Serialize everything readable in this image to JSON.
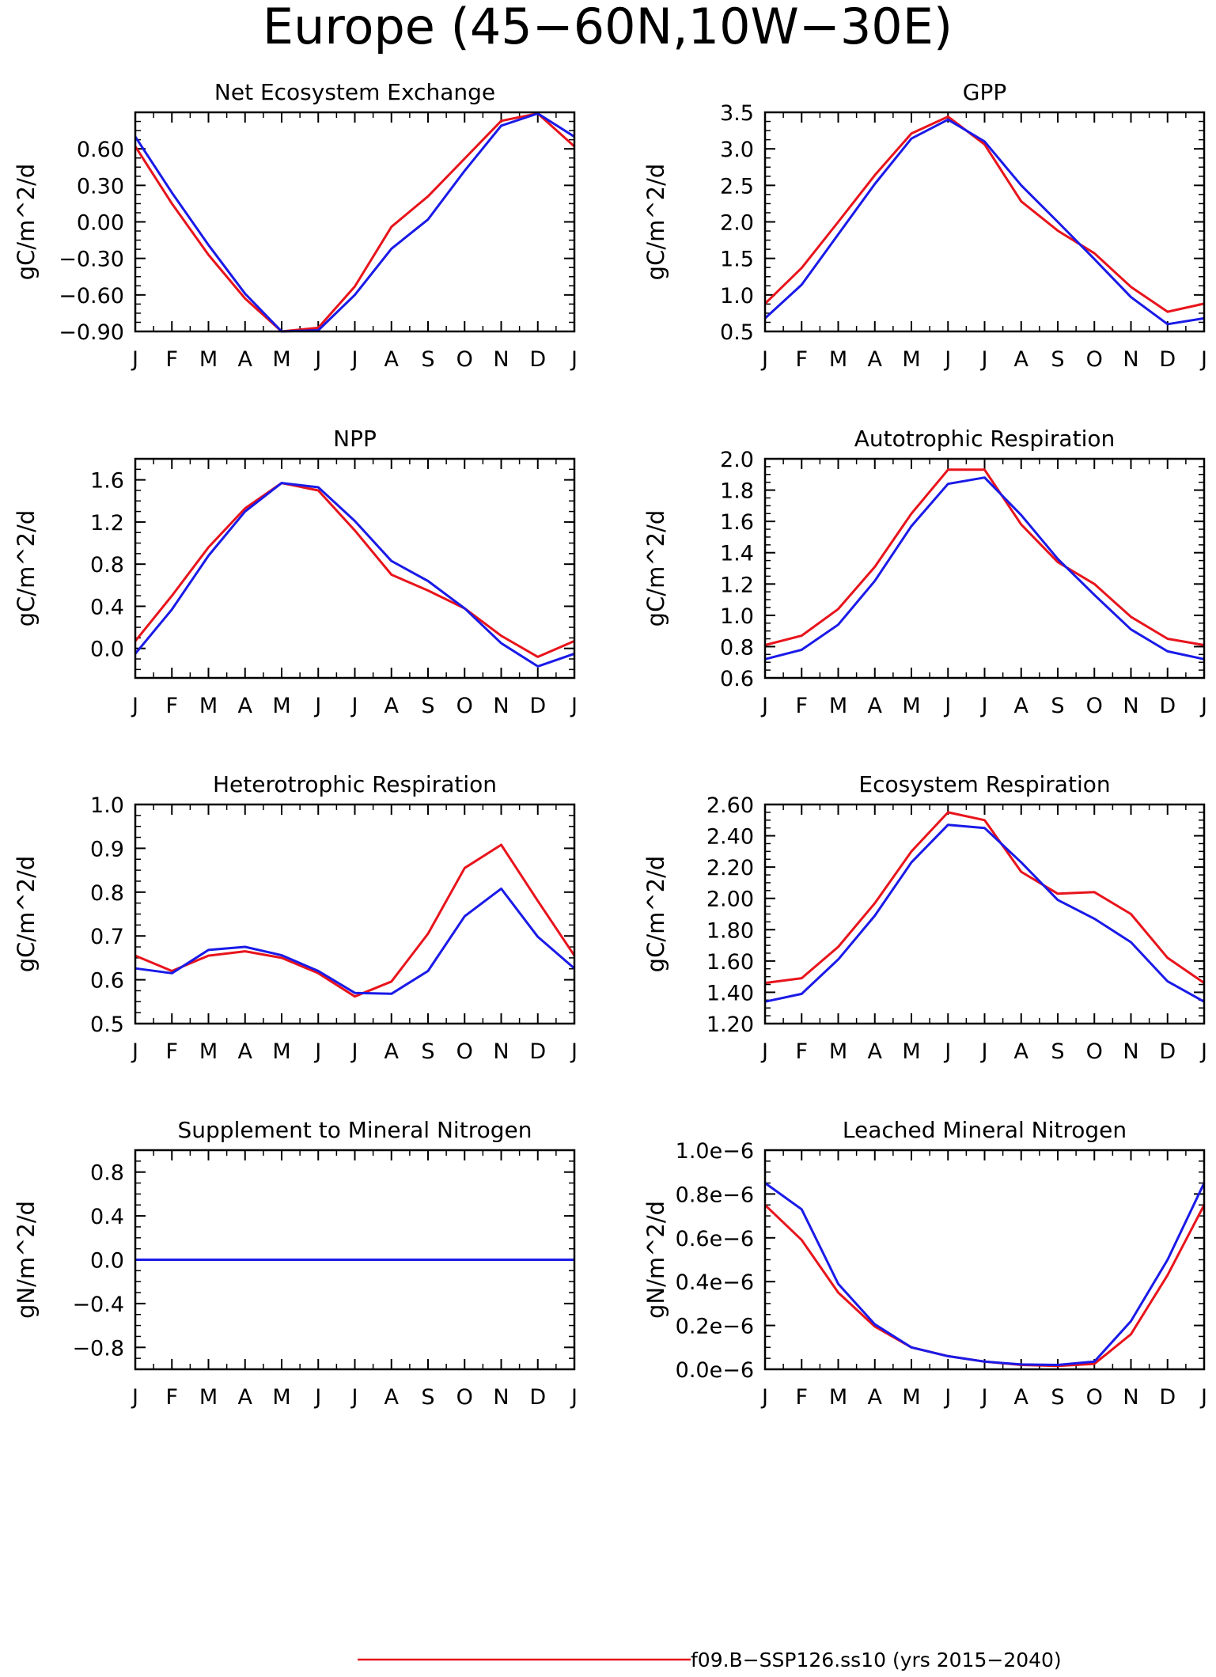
{
  "figure_title": "Europe (45−60N,10W−30E)",
  "colors": {
    "series_1": "#e8141c",
    "series_2": "#1a1ae8",
    "axes": "#000000"
  },
  "legend": [
    {
      "label": "f09.B−SSP126.ss10 (yrs 2015−2040)",
      "color": "#e8141c"
    }
  ],
  "chart_data": [
    {
      "type": "line",
      "title": "Net Ecosystem Exchange",
      "ylabel": "gC/m^2/d",
      "categories": [
        "J",
        "F",
        "M",
        "A",
        "M",
        "J",
        "J",
        "A",
        "S",
        "O",
        "N",
        "D",
        "J"
      ],
      "ylim": [
        -0.9,
        0.9
      ],
      "yticks": [
        -0.9,
        -0.6,
        -0.3,
        0.0,
        0.3,
        0.6
      ],
      "yticklabels": [
        "−0.90",
        "−0.60",
        "−0.30",
        "0.00",
        "0.30",
        "0.60"
      ],
      "series": [
        {
          "values": [
            0.62,
            0.15,
            -0.27,
            -0.63,
            -0.9,
            -0.87,
            -0.53,
            -0.04,
            0.21,
            0.52,
            0.83,
            0.89,
            0.62
          ]
        },
        {
          "values": [
            0.7,
            0.24,
            -0.19,
            -0.59,
            -0.9,
            -0.89,
            -0.6,
            -0.22,
            0.02,
            0.42,
            0.79,
            0.89,
            0.7
          ]
        }
      ]
    },
    {
      "type": "line",
      "title": "GPP",
      "ylabel": "gC/m^2/d",
      "categories": [
        "J",
        "F",
        "M",
        "A",
        "M",
        "J",
        "J",
        "A",
        "S",
        "O",
        "N",
        "D",
        "J"
      ],
      "ylim": [
        0.5,
        3.5
      ],
      "yticks": [
        0.5,
        1.0,
        1.5,
        2.0,
        2.5,
        3.0,
        3.5
      ],
      "yticklabels": [
        "0.5",
        "1.0",
        "1.5",
        "2.0",
        "2.5",
        "3.0",
        "3.5"
      ],
      "series": [
        {
          "values": [
            0.88,
            1.37,
            2.0,
            2.64,
            3.21,
            3.44,
            3.06,
            2.28,
            1.88,
            1.57,
            1.11,
            0.77,
            0.88
          ]
        },
        {
          "values": [
            0.68,
            1.14,
            1.83,
            2.52,
            3.14,
            3.4,
            3.1,
            2.5,
            2.0,
            1.49,
            0.97,
            0.6,
            0.68
          ]
        }
      ]
    },
    {
      "type": "line",
      "title": "NPP",
      "ylabel": "gC/m^2/d",
      "categories": [
        "J",
        "F",
        "M",
        "A",
        "M",
        "J",
        "J",
        "A",
        "S",
        "O",
        "N",
        "D",
        "J"
      ],
      "ylim": [
        -0.28,
        1.8
      ],
      "yticks": [
        0.0,
        0.4,
        0.8,
        1.2,
        1.6
      ],
      "yticklabels": [
        "0.0",
        "0.4",
        "0.8",
        "1.2",
        "1.6"
      ],
      "series": [
        {
          "values": [
            0.07,
            0.5,
            0.96,
            1.33,
            1.57,
            1.5,
            1.12,
            0.7,
            0.55,
            0.38,
            0.12,
            -0.08,
            0.07
          ]
        },
        {
          "values": [
            -0.05,
            0.37,
            0.88,
            1.3,
            1.57,
            1.53,
            1.21,
            0.83,
            0.64,
            0.38,
            0.05,
            -0.17,
            -0.05
          ]
        }
      ]
    },
    {
      "type": "line",
      "title": "Autotrophic Respiration",
      "ylabel": "gC/m^2/d",
      "categories": [
        "J",
        "F",
        "M",
        "A",
        "M",
        "J",
        "J",
        "A",
        "S",
        "O",
        "N",
        "D",
        "J"
      ],
      "ylim": [
        0.6,
        2.0
      ],
      "yticks": [
        0.6,
        0.8,
        1.0,
        1.2,
        1.4,
        1.6,
        1.8,
        2.0
      ],
      "yticklabels": [
        "0.6",
        "0.8",
        "1.0",
        "1.2",
        "1.4",
        "1.6",
        "1.8",
        "2.0"
      ],
      "series": [
        {
          "values": [
            0.81,
            0.87,
            1.04,
            1.31,
            1.65,
            1.93,
            1.93,
            1.58,
            1.34,
            1.2,
            0.99,
            0.85,
            0.81
          ]
        },
        {
          "values": [
            0.72,
            0.78,
            0.94,
            1.22,
            1.57,
            1.84,
            1.88,
            1.64,
            1.36,
            1.13,
            0.91,
            0.77,
            0.72
          ]
        }
      ]
    },
    {
      "type": "line",
      "title": "Heterotrophic Respiration",
      "ylabel": "gC/m^2/d",
      "categories": [
        "J",
        "F",
        "M",
        "A",
        "M",
        "J",
        "J",
        "A",
        "S",
        "O",
        "N",
        "D",
        "J"
      ],
      "ylim": [
        0.5,
        1.0
      ],
      "yticks": [
        0.5,
        0.6,
        0.7,
        0.8,
        0.9,
        1.0
      ],
      "yticklabels": [
        "0.5",
        "0.6",
        "0.7",
        "0.8",
        "0.9",
        "1.0"
      ],
      "series": [
        {
          "values": [
            0.655,
            0.62,
            0.655,
            0.665,
            0.65,
            0.615,
            0.562,
            0.596,
            0.705,
            0.855,
            0.908,
            0.78,
            0.655
          ]
        },
        {
          "values": [
            0.626,
            0.615,
            0.668,
            0.675,
            0.656,
            0.62,
            0.57,
            0.568,
            0.62,
            0.745,
            0.808,
            0.698,
            0.626
          ]
        }
      ]
    },
    {
      "type": "line",
      "title": "Ecosystem Respiration",
      "ylabel": "gC/m^2/d",
      "categories": [
        "J",
        "F",
        "M",
        "A",
        "M",
        "J",
        "J",
        "A",
        "S",
        "O",
        "N",
        "D",
        "J"
      ],
      "ylim": [
        1.2,
        2.6
      ],
      "yticks": [
        1.2,
        1.4,
        1.6,
        1.8,
        2.0,
        2.2,
        2.4,
        2.6
      ],
      "yticklabels": [
        "1.20",
        "1.40",
        "1.60",
        "1.80",
        "2.00",
        "2.20",
        "2.40",
        "2.60"
      ],
      "series": [
        {
          "values": [
            1.46,
            1.49,
            1.69,
            1.97,
            2.3,
            2.55,
            2.5,
            2.17,
            2.03,
            2.04,
            1.9,
            1.62,
            1.46
          ]
        },
        {
          "values": [
            1.34,
            1.39,
            1.61,
            1.89,
            2.23,
            2.47,
            2.45,
            2.23,
            1.99,
            1.87,
            1.72,
            1.47,
            1.34
          ]
        }
      ]
    },
    {
      "type": "line",
      "title": "Supplement to Mineral Nitrogen",
      "ylabel": "gN/m^2/d",
      "categories": [
        "J",
        "F",
        "M",
        "A",
        "M",
        "J",
        "J",
        "A",
        "S",
        "O",
        "N",
        "D",
        "J"
      ],
      "ylim": [
        -1.0,
        1.0
      ],
      "yticks": [
        -0.8,
        -0.4,
        0.0,
        0.4,
        0.8
      ],
      "yticklabels": [
        "−0.8",
        "−0.4",
        "0.0",
        "0.4",
        "0.8"
      ],
      "series": [
        {
          "values": [
            0,
            0,
            0,
            0,
            0,
            0,
            0,
            0,
            0,
            0,
            0,
            0,
            0
          ]
        },
        {
          "values": [
            0,
            0,
            0,
            0,
            0,
            0,
            0,
            0,
            0,
            0,
            0,
            0,
            0
          ]
        }
      ]
    },
    {
      "type": "line",
      "title": "Leached Mineral Nitrogen",
      "ylabel": "gN/m^2/d",
      "categories": [
        "J",
        "F",
        "M",
        "A",
        "M",
        "J",
        "J",
        "A",
        "S",
        "O",
        "N",
        "D",
        "J"
      ],
      "ylim": [
        0.0,
        1e-06
      ],
      "yticks": [
        0.0,
        2e-07,
        4e-07,
        6e-07,
        8e-07,
        1e-06
      ],
      "yticklabels": [
        "0.0e−6",
        "0.2e−6",
        "0.4e−6",
        "0.6e−6",
        "0.8e−6",
        "1.0e−6"
      ],
      "series": [
        {
          "values": [
            7.5e-07,
            5.9e-07,
            3.5e-07,
            1.95e-07,
            1e-07,
            6e-08,
            3.5e-08,
            2e-08,
            1.5e-08,
            2.5e-08,
            1.6e-07,
            4.3e-07,
            7.5e-07
          ]
        },
        {
          "values": [
            8.5e-07,
            7.3e-07,
            3.9e-07,
            2.05e-07,
            1e-07,
            6e-08,
            3.5e-08,
            2.2e-08,
            2e-08,
            3.5e-08,
            2.2e-07,
            5e-07,
            8.5e-07
          ]
        }
      ]
    }
  ]
}
